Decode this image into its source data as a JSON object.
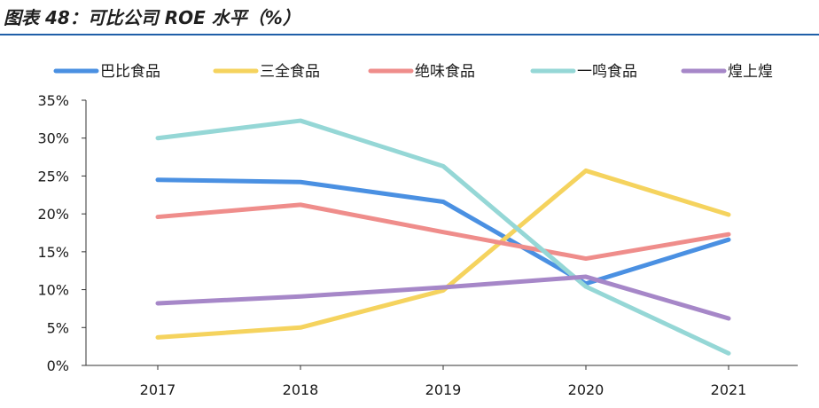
{
  "page": {
    "title": "图表 48：可比公司 ROE 水平（%）"
  },
  "chart_data": {
    "type": "line",
    "categories": [
      "2017",
      "2018",
      "2019",
      "2020",
      "2021"
    ],
    "ylim": [
      0,
      35
    ],
    "y_ticks": [
      "0%",
      "5%",
      "10%",
      "15%",
      "20%",
      "25%",
      "30%",
      "35%"
    ],
    "grid": false,
    "legend_position": "top",
    "series": [
      {
        "name": "巴比食品",
        "color": "#4a90e2",
        "values": [
          24.5,
          24.2,
          21.6,
          10.8,
          16.6
        ]
      },
      {
        "name": "三全食品",
        "color": "#f5d35e",
        "values": [
          3.7,
          5.0,
          9.9,
          25.7,
          19.9
        ]
      },
      {
        "name": "绝味食品",
        "color": "#ef8d8b",
        "values": [
          19.6,
          21.2,
          17.6,
          14.1,
          17.3
        ]
      },
      {
        "name": "一鸣食品",
        "color": "#95d7d6",
        "values": [
          30.0,
          32.3,
          26.3,
          10.4,
          1.6
        ]
      },
      {
        "name": "煌上煌",
        "color": "#a687c8",
        "values": [
          8.2,
          9.1,
          10.3,
          11.7,
          6.2
        ]
      }
    ]
  }
}
